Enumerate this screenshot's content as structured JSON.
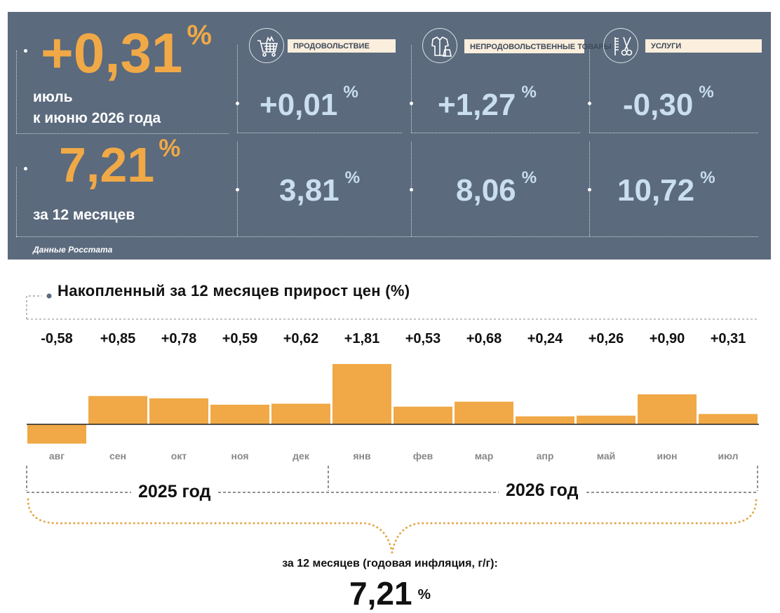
{
  "monthly": {
    "value": "+0,31",
    "unit": "%",
    "label_line1": "июль",
    "label_line2": "к июню 2026 года"
  },
  "annual": {
    "value": "7,21",
    "unit": "%",
    "label": "за 12 месяцев"
  },
  "categories": [
    {
      "label": "ПРОДОВОЛЬСТВИЕ",
      "icon": "shopping-cart-icon",
      "monthly": "+0,01",
      "annual": "3,81",
      "unit": "%"
    },
    {
      "label": "НЕПРОДОВОЛЬСТВЕННЫЕ ТОВАРЫ",
      "icon": "clothes-icon",
      "monthly": "+1,27",
      "annual": "8,06",
      "unit": "%"
    },
    {
      "label": "УСЛУГИ",
      "icon": "scissors-comb-icon",
      "monthly": "-0,30",
      "annual": "10,72",
      "unit": "%"
    }
  ],
  "source": "Данные Росстата",
  "colors": {
    "panel": "#5b6a7d",
    "orange": "#f0a946",
    "light_blue": "#c9def0",
    "label_bg": "#fbeedd"
  },
  "chart_data": {
    "type": "bar",
    "title": "Накопленный за 12 месяцев прирост цен (%)",
    "categories": [
      "авг",
      "сен",
      "окт",
      "ноя",
      "дек",
      "янв",
      "фев",
      "мар",
      "апр",
      "май",
      "июн",
      "июл"
    ],
    "values": [
      -0.58,
      0.85,
      0.78,
      0.59,
      0.62,
      1.81,
      0.53,
      0.68,
      0.24,
      0.26,
      0.9,
      0.31
    ],
    "value_labels": [
      "-0,58",
      "+0,85",
      "+0,78",
      "+0,59",
      "+0,62",
      "+1,81",
      "+0,53",
      "+0,68",
      "+0,24",
      "+0,26",
      "+0,90",
      "+0,31"
    ],
    "years": [
      {
        "label": "2025 год",
        "months": [
          "авг",
          "сен",
          "окт",
          "ноя",
          "дек"
        ]
      },
      {
        "label": "2026 год",
        "months": [
          "янв",
          "фев",
          "мар",
          "апр",
          "май",
          "июн",
          "июл"
        ]
      }
    ],
    "bar_color": "#f0a946",
    "grid": false,
    "legend": "none"
  },
  "summary": {
    "caption": "за 12 месяцев (годовая инфляция, г/г):",
    "value": "7,21",
    "unit": "%"
  }
}
